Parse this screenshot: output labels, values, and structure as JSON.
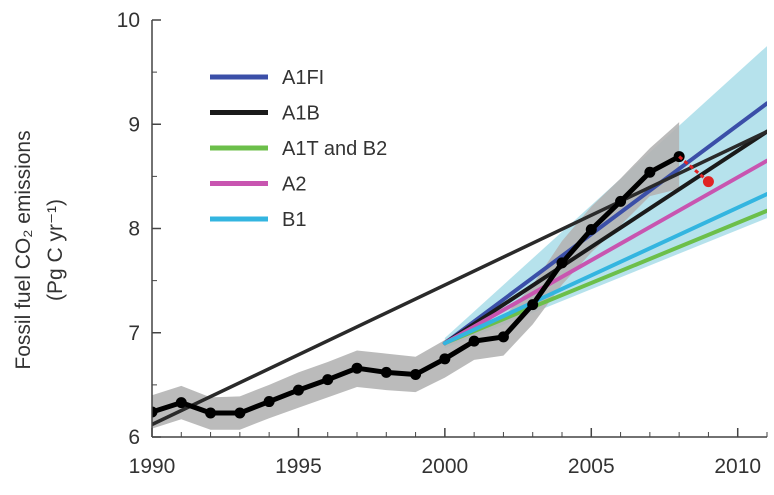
{
  "chart_data": {
    "type": "line",
    "title": "",
    "xlabel": "",
    "ylabel_line1": "Fossil fuel CO₂ emissions",
    "ylabel_line2": "(Pg C yr⁻¹)",
    "xlim": [
      1990,
      2011
    ],
    "ylim": [
      6,
      10
    ],
    "x_ticks": [
      "1990",
      "1995",
      "2000",
      "2005",
      "2010"
    ],
    "y_ticks": [
      "6",
      "7",
      "8",
      "9",
      "10"
    ],
    "grid": false,
    "legend_position": "top-left",
    "series": [
      {
        "name": "A1FI",
        "color": "#3b4fa8",
        "x": [
          2000,
          2011
        ],
        "y": [
          6.9,
          9.2
        ]
      },
      {
        "name": "A1B",
        "color": "#1a1a1a",
        "x": [
          2000,
          2011
        ],
        "y": [
          6.9,
          8.93
        ]
      },
      {
        "name": "A1T and B2",
        "color": "#6cbf4a",
        "x": [
          2000,
          2011
        ],
        "y": [
          6.9,
          8.17
        ]
      },
      {
        "name": "A2",
        "color": "#c855b0",
        "x": [
          2000,
          2011
        ],
        "y": [
          6.9,
          8.65
        ]
      },
      {
        "name": "B1",
        "color": "#33b5e0",
        "x": [
          2000,
          2011
        ],
        "y": [
          6.9,
          8.33
        ]
      }
    ],
    "observed": {
      "color": "#000000",
      "x": [
        1990,
        1991,
        1992,
        1993,
        1994,
        1995,
        1996,
        1997,
        1998,
        1999,
        2000,
        2001,
        2002,
        2003,
        2004,
        2005,
        2006,
        2007,
        2008
      ],
      "y": [
        6.24,
        6.33,
        6.23,
        6.23,
        6.34,
        6.45,
        6.55,
        6.66,
        6.62,
        6.6,
        6.75,
        6.92,
        6.96,
        7.27,
        7.67,
        7.99,
        8.26,
        8.54,
        8.69
      ]
    },
    "projection_2009": {
      "color": "#e02424",
      "x": [
        2008,
        2009
      ],
      "y": [
        8.69,
        8.45
      ]
    },
    "observed_uncertainty_band": {
      "color": "#b4b4b4",
      "x": [
        1990,
        1991,
        1992,
        1993,
        1994,
        1995,
        1996,
        1997,
        1998,
        1999,
        2000,
        2001,
        2002,
        2003,
        2004,
        2005,
        2006,
        2007,
        2008
      ],
      "upper": [
        6.4,
        6.49,
        6.38,
        6.39,
        6.5,
        6.62,
        6.72,
        6.83,
        6.8,
        6.77,
        6.93,
        7.1,
        7.15,
        7.46,
        7.88,
        8.21,
        8.48,
        8.77,
        9.02
      ],
      "lower": [
        6.08,
        6.17,
        6.07,
        6.07,
        6.18,
        6.28,
        6.38,
        6.48,
        6.45,
        6.43,
        6.57,
        6.74,
        6.78,
        7.08,
        7.46,
        7.77,
        8.03,
        8.31,
        8.38
      ]
    },
    "scenario_range_band": {
      "color": "#a9dde9",
      "x": [
        2000,
        2011
      ],
      "upper": [
        6.95,
        9.75
      ],
      "lower": [
        6.85,
        8.1
      ]
    },
    "trend_line": {
      "color": "#2a2a2a",
      "x": [
        1990,
        2011
      ],
      "y": [
        6.12,
        8.93
      ]
    }
  }
}
